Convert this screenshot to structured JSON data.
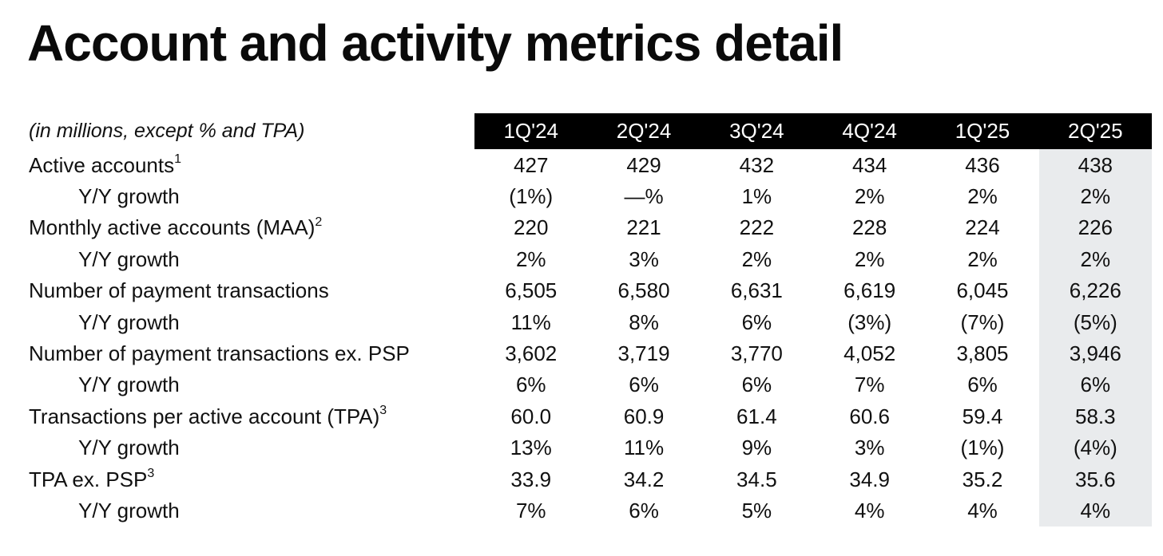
{
  "title": "Account and activity metrics detail",
  "table": {
    "units_note": "(in millions, except % and TPA)",
    "columns": [
      "1Q'24",
      "2Q'24",
      "3Q'24",
      "4Q'24",
      "1Q'25",
      "2Q'25"
    ],
    "rows": [
      {
        "label": "Active accounts",
        "sup": "1",
        "indent": false,
        "values": [
          "427",
          "429",
          "432",
          "434",
          "436",
          "438"
        ]
      },
      {
        "label": "Y/Y growth",
        "sup": "",
        "indent": true,
        "values": [
          "(1%)",
          "—%",
          "1%",
          "2%",
          "2%",
          "2%"
        ]
      },
      {
        "label": "Monthly active accounts (MAA)",
        "sup": "2",
        "indent": false,
        "values": [
          "220",
          "221",
          "222",
          "228",
          "224",
          "226"
        ]
      },
      {
        "label": "Y/Y growth",
        "sup": "",
        "indent": true,
        "values": [
          "2%",
          "3%",
          "2%",
          "2%",
          "2%",
          "2%"
        ]
      },
      {
        "label": "Number of payment transactions",
        "sup": "",
        "indent": false,
        "values": [
          "6,505",
          "6,580",
          "6,631",
          "6,619",
          "6,045",
          "6,226"
        ]
      },
      {
        "label": "Y/Y growth",
        "sup": "",
        "indent": true,
        "values": [
          "11%",
          "8%",
          "6%",
          "(3%)",
          "(7%)",
          "(5%)"
        ]
      },
      {
        "label": "Number of payment transactions ex. PSP",
        "sup": "",
        "indent": false,
        "values": [
          "3,602",
          "3,719",
          "3,770",
          "4,052",
          "3,805",
          "3,946"
        ]
      },
      {
        "label": "Y/Y growth",
        "sup": "",
        "indent": true,
        "values": [
          "6%",
          "6%",
          "6%",
          "7%",
          "6%",
          "6%"
        ]
      },
      {
        "label": "Transactions per active account (TPA)",
        "sup": "3",
        "indent": false,
        "values": [
          "60.0",
          "60.9",
          "61.4",
          "60.6",
          "59.4",
          "58.3"
        ]
      },
      {
        "label": "Y/Y growth",
        "sup": "",
        "indent": true,
        "values": [
          "13%",
          "11%",
          "9%",
          "3%",
          "(1%)",
          "(4%)"
        ]
      },
      {
        "label": "TPA ex. PSP",
        "sup": "3",
        "indent": false,
        "values": [
          "33.9",
          "34.2",
          "34.5",
          "34.9",
          "35.2",
          "35.6"
        ]
      },
      {
        "label": "Y/Y growth",
        "sup": "",
        "indent": true,
        "values": [
          "7%",
          "6%",
          "5%",
          "4%",
          "4%",
          "4%"
        ]
      }
    ]
  },
  "colors": {
    "header_bg": "#000000",
    "header_fg": "#ffffff",
    "highlight_col_bg": "#e9ebed",
    "text": "#111111",
    "background": "#ffffff"
  },
  "chart_data": {
    "type": "table",
    "title": "Account and activity metrics detail",
    "units_note": "(in millions, except % and TPA)",
    "columns": [
      "1Q'24",
      "2Q'24",
      "3Q'24",
      "4Q'24",
      "1Q'25",
      "2Q'25"
    ],
    "highlighted_column": "2Q'25",
    "series": [
      {
        "name": "Active accounts",
        "footnote": "1",
        "values": [
          427,
          429,
          432,
          434,
          436,
          438
        ]
      },
      {
        "name": "Active accounts Y/Y growth (%)",
        "values": [
          -1,
          0,
          1,
          2,
          2,
          2
        ]
      },
      {
        "name": "Monthly active accounts (MAA)",
        "footnote": "2",
        "values": [
          220,
          221,
          222,
          228,
          224,
          226
        ]
      },
      {
        "name": "MAA Y/Y growth (%)",
        "values": [
          2,
          3,
          2,
          2,
          2,
          2
        ]
      },
      {
        "name": "Number of payment transactions",
        "values": [
          6505,
          6580,
          6631,
          6619,
          6045,
          6226
        ]
      },
      {
        "name": "Payment transactions Y/Y growth (%)",
        "values": [
          11,
          8,
          6,
          -3,
          -7,
          -5
        ]
      },
      {
        "name": "Number of payment transactions ex. PSP",
        "values": [
          3602,
          3719,
          3770,
          4052,
          3805,
          3946
        ]
      },
      {
        "name": "Payment transactions ex. PSP Y/Y growth (%)",
        "values": [
          6,
          6,
          6,
          7,
          6,
          6
        ]
      },
      {
        "name": "Transactions per active account (TPA)",
        "footnote": "3",
        "values": [
          60.0,
          60.9,
          61.4,
          60.6,
          59.4,
          58.3
        ]
      },
      {
        "name": "TPA Y/Y growth (%)",
        "values": [
          13,
          11,
          9,
          3,
          -1,
          -4
        ]
      },
      {
        "name": "TPA ex. PSP",
        "footnote": "3",
        "values": [
          33.9,
          34.2,
          34.5,
          34.9,
          35.2,
          35.6
        ]
      },
      {
        "name": "TPA ex. PSP Y/Y growth (%)",
        "values": [
          7,
          6,
          5,
          4,
          4,
          4
        ]
      }
    ]
  }
}
